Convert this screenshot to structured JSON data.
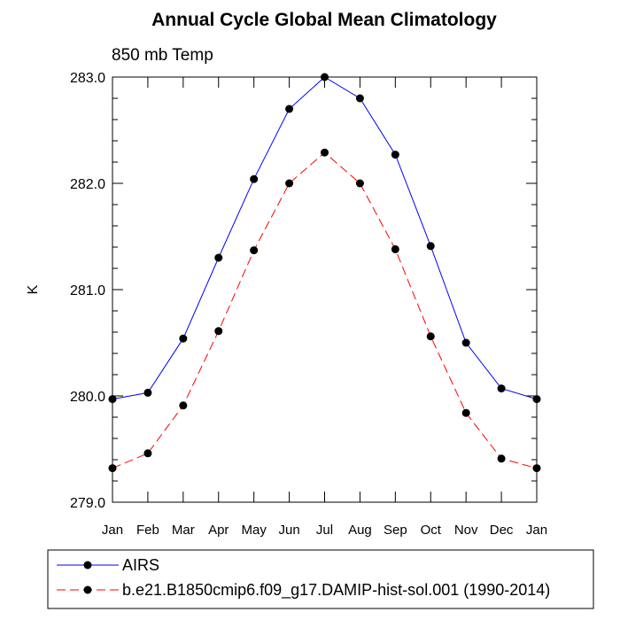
{
  "chart_data": {
    "type": "line",
    "title": "Annual Cycle Global Mean Climatology",
    "subtitle": "850 mb Temp",
    "xlabel": "",
    "ylabel": "K",
    "categories": [
      "Jan",
      "Feb",
      "Mar",
      "Apr",
      "May",
      "Jun",
      "Jul",
      "Aug",
      "Sep",
      "Oct",
      "Nov",
      "Dec",
      "Jan"
    ],
    "ylim": [
      279.0,
      283.0
    ],
    "yticks": [
      "279.0",
      "280.0",
      "281.0",
      "282.0",
      "283.0"
    ],
    "series": [
      {
        "name": "AIRS",
        "color": "#0000ff",
        "dash": "solid",
        "values": [
          279.97,
          280.03,
          280.54,
          281.3,
          282.04,
          282.7,
          283.0,
          282.8,
          282.27,
          281.41,
          280.5,
          280.07,
          279.97
        ]
      },
      {
        "name": "b.e21.B1850cmip6.f09_g17.DAMIP-hist-sol.001 (1990-2014)",
        "color": "#ff0000",
        "dash": "dashed",
        "values": [
          279.32,
          279.46,
          279.91,
          280.61,
          281.37,
          282.0,
          282.29,
          282.0,
          281.38,
          280.56,
          279.84,
          279.41,
          279.32
        ]
      }
    ],
    "legend_position": "bottom"
  }
}
